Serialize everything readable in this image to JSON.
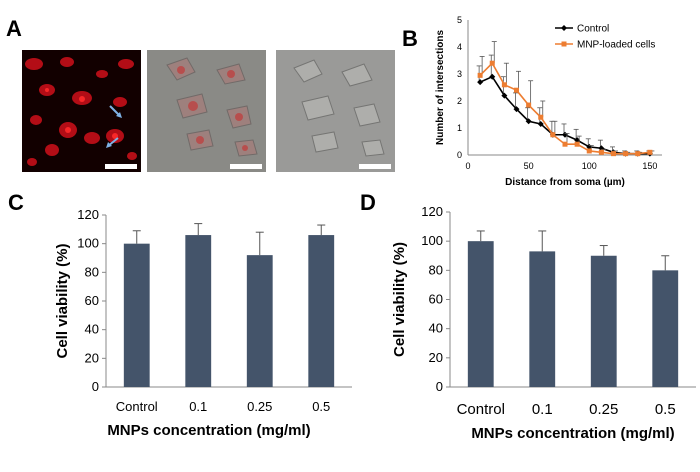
{
  "labels": {
    "a": "A",
    "b": "B",
    "c": "C",
    "d": "D"
  },
  "colors": {
    "bar": "#44546a",
    "control_line": "#000000",
    "mnp_line": "#ed7d31",
    "fluorescence": "#e0141a"
  },
  "chart_data": [
    {
      "id": "B",
      "type": "line",
      "title": "",
      "xlabel": "Distance from soma (µm)",
      "ylabel": "Number of intersections",
      "xlim": [
        0,
        160
      ],
      "ylim": [
        0,
        5
      ],
      "xticks": [
        0,
        50,
        100,
        150
      ],
      "yticks": [
        0,
        1,
        2,
        3,
        4,
        5
      ],
      "legend_position": "top-right",
      "series": [
        {
          "name": "Control",
          "color": "#000000",
          "x": [
            10,
            20,
            30,
            40,
            50,
            60,
            70,
            80,
            90,
            100,
            110,
            120,
            130,
            140,
            150
          ],
          "y": [
            2.7,
            2.9,
            2.2,
            1.7,
            1.25,
            1.15,
            0.75,
            0.75,
            0.55,
            0.3,
            0.25,
            0.1,
            0.05,
            0.05,
            0.05
          ],
          "err": [
            0.6,
            0.8,
            0.7,
            0.6,
            0.5,
            0.6,
            0.5,
            0.4,
            0.4,
            0.3,
            0.3,
            0.2,
            0.1,
            0.1,
            0.1
          ]
        },
        {
          "name": "MNP-loaded cells",
          "color": "#ed7d31",
          "x": [
            10,
            20,
            30,
            40,
            50,
            60,
            70,
            80,
            90,
            100,
            110,
            120,
            130,
            140,
            150
          ],
          "y": [
            2.95,
            3.4,
            2.6,
            2.4,
            1.85,
            1.4,
            0.75,
            0.4,
            0.4,
            0.15,
            0.1,
            0.05,
            0.05,
            0.05,
            0.1
          ],
          "err": [
            0.7,
            0.8,
            0.8,
            0.7,
            0.9,
            0.6,
            0.5,
            0.4,
            0.3,
            0.2,
            0.1,
            0.1,
            0.05,
            0.05,
            0.05
          ]
        }
      ]
    },
    {
      "id": "C",
      "type": "bar",
      "title": "",
      "xlabel": "MNPs concentration (mg/ml)",
      "ylabel": "Cell viability (%)",
      "categories": [
        "Control",
        "0.1",
        "0.25",
        "0.5"
      ],
      "values": [
        100,
        106,
        92,
        106
      ],
      "errors": [
        9,
        8,
        16,
        7
      ],
      "ylim": [
        0,
        120
      ],
      "yticks": [
        0,
        20,
        40,
        60,
        80,
        100,
        120
      ]
    },
    {
      "id": "D",
      "type": "bar",
      "title": "",
      "xlabel": "MNPs concentration (mg/ml)",
      "ylabel": "Cell viability (%)",
      "categories": [
        "Control",
        "0.1",
        "0.25",
        "0.5"
      ],
      "values": [
        100,
        93,
        90,
        80
      ],
      "errors": [
        7,
        14,
        7,
        10
      ],
      "ylim": [
        0,
        120
      ],
      "yticks": [
        0,
        20,
        40,
        60,
        80,
        100,
        120
      ]
    }
  ]
}
